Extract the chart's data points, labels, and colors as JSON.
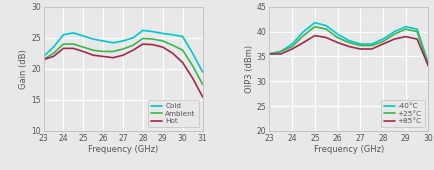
{
  "left": {
    "xlabel": "Frequency (GHz)",
    "ylabel": "Gain (dB)",
    "xlim": [
      23,
      31
    ],
    "ylim": [
      10,
      30
    ],
    "yticks": [
      10,
      15,
      20,
      25,
      30
    ],
    "xticks": [
      23,
      24,
      25,
      26,
      27,
      28,
      29,
      30,
      31
    ],
    "freq": [
      23,
      23.5,
      24,
      24.5,
      25,
      25.5,
      26,
      26.5,
      27,
      27.5,
      28,
      28.5,
      29,
      29.5,
      30,
      30.5,
      31
    ],
    "cold": [
      22.0,
      23.5,
      25.5,
      25.8,
      25.3,
      24.8,
      24.5,
      24.2,
      24.5,
      25.0,
      26.2,
      26.0,
      25.7,
      25.5,
      25.2,
      22.5,
      19.5
    ],
    "ambient": [
      21.5,
      22.5,
      24.0,
      24.0,
      23.5,
      23.0,
      22.8,
      22.8,
      23.2,
      23.8,
      24.9,
      24.8,
      24.5,
      23.8,
      23.0,
      20.5,
      17.5
    ],
    "hot": [
      21.5,
      22.0,
      23.3,
      23.3,
      22.8,
      22.2,
      22.0,
      21.8,
      22.2,
      23.0,
      24.0,
      23.9,
      23.5,
      22.5,
      21.0,
      18.5,
      15.5
    ],
    "cold_color": "#00c8d2",
    "ambient_color": "#3cb54a",
    "hot_color": "#a0294e",
    "legend_labels": [
      "Cold",
      "Ambient",
      "Hot"
    ]
  },
  "right": {
    "xlabel": "Frequency (GHz)",
    "ylabel": "OIP3 (dBm)",
    "xlim": [
      23,
      30
    ],
    "ylim": [
      20,
      45
    ],
    "yticks": [
      20,
      25,
      30,
      35,
      40,
      45
    ],
    "xticks": [
      23,
      24,
      25,
      26,
      27,
      28,
      29,
      30
    ],
    "freq": [
      23,
      23.5,
      24,
      24.5,
      25,
      25.5,
      26,
      26.5,
      27,
      27.5,
      28,
      28.5,
      29,
      29.5,
      30
    ],
    "cold": [
      35.5,
      36.0,
      37.5,
      40.0,
      41.8,
      41.2,
      39.5,
      38.2,
      37.5,
      37.5,
      38.5,
      40.0,
      41.0,
      40.5,
      33.5
    ],
    "ambient": [
      35.5,
      36.0,
      37.0,
      39.2,
      41.0,
      40.5,
      38.8,
      37.8,
      37.2,
      37.2,
      38.0,
      39.5,
      40.5,
      40.0,
      33.2
    ],
    "hot": [
      35.5,
      35.5,
      36.5,
      37.8,
      39.2,
      38.8,
      37.8,
      37.0,
      36.5,
      36.5,
      37.5,
      38.5,
      39.0,
      38.5,
      33.0
    ],
    "cold_color": "#00c8d2",
    "ambient_color": "#3cb54a",
    "hot_color": "#a0294e",
    "legend_labels": [
      "-40°C",
      "+25°C",
      "+85°C"
    ]
  },
  "fig_bg": "#e8e8e8",
  "plot_bg": "#e8e8e8",
  "grid_color": "#ffffff",
  "spine_color": "#bbbbbb",
  "tick_color": "#555555",
  "linewidth": 1.2,
  "tick_labelsize": 5.5,
  "label_fontsize": 6.0
}
